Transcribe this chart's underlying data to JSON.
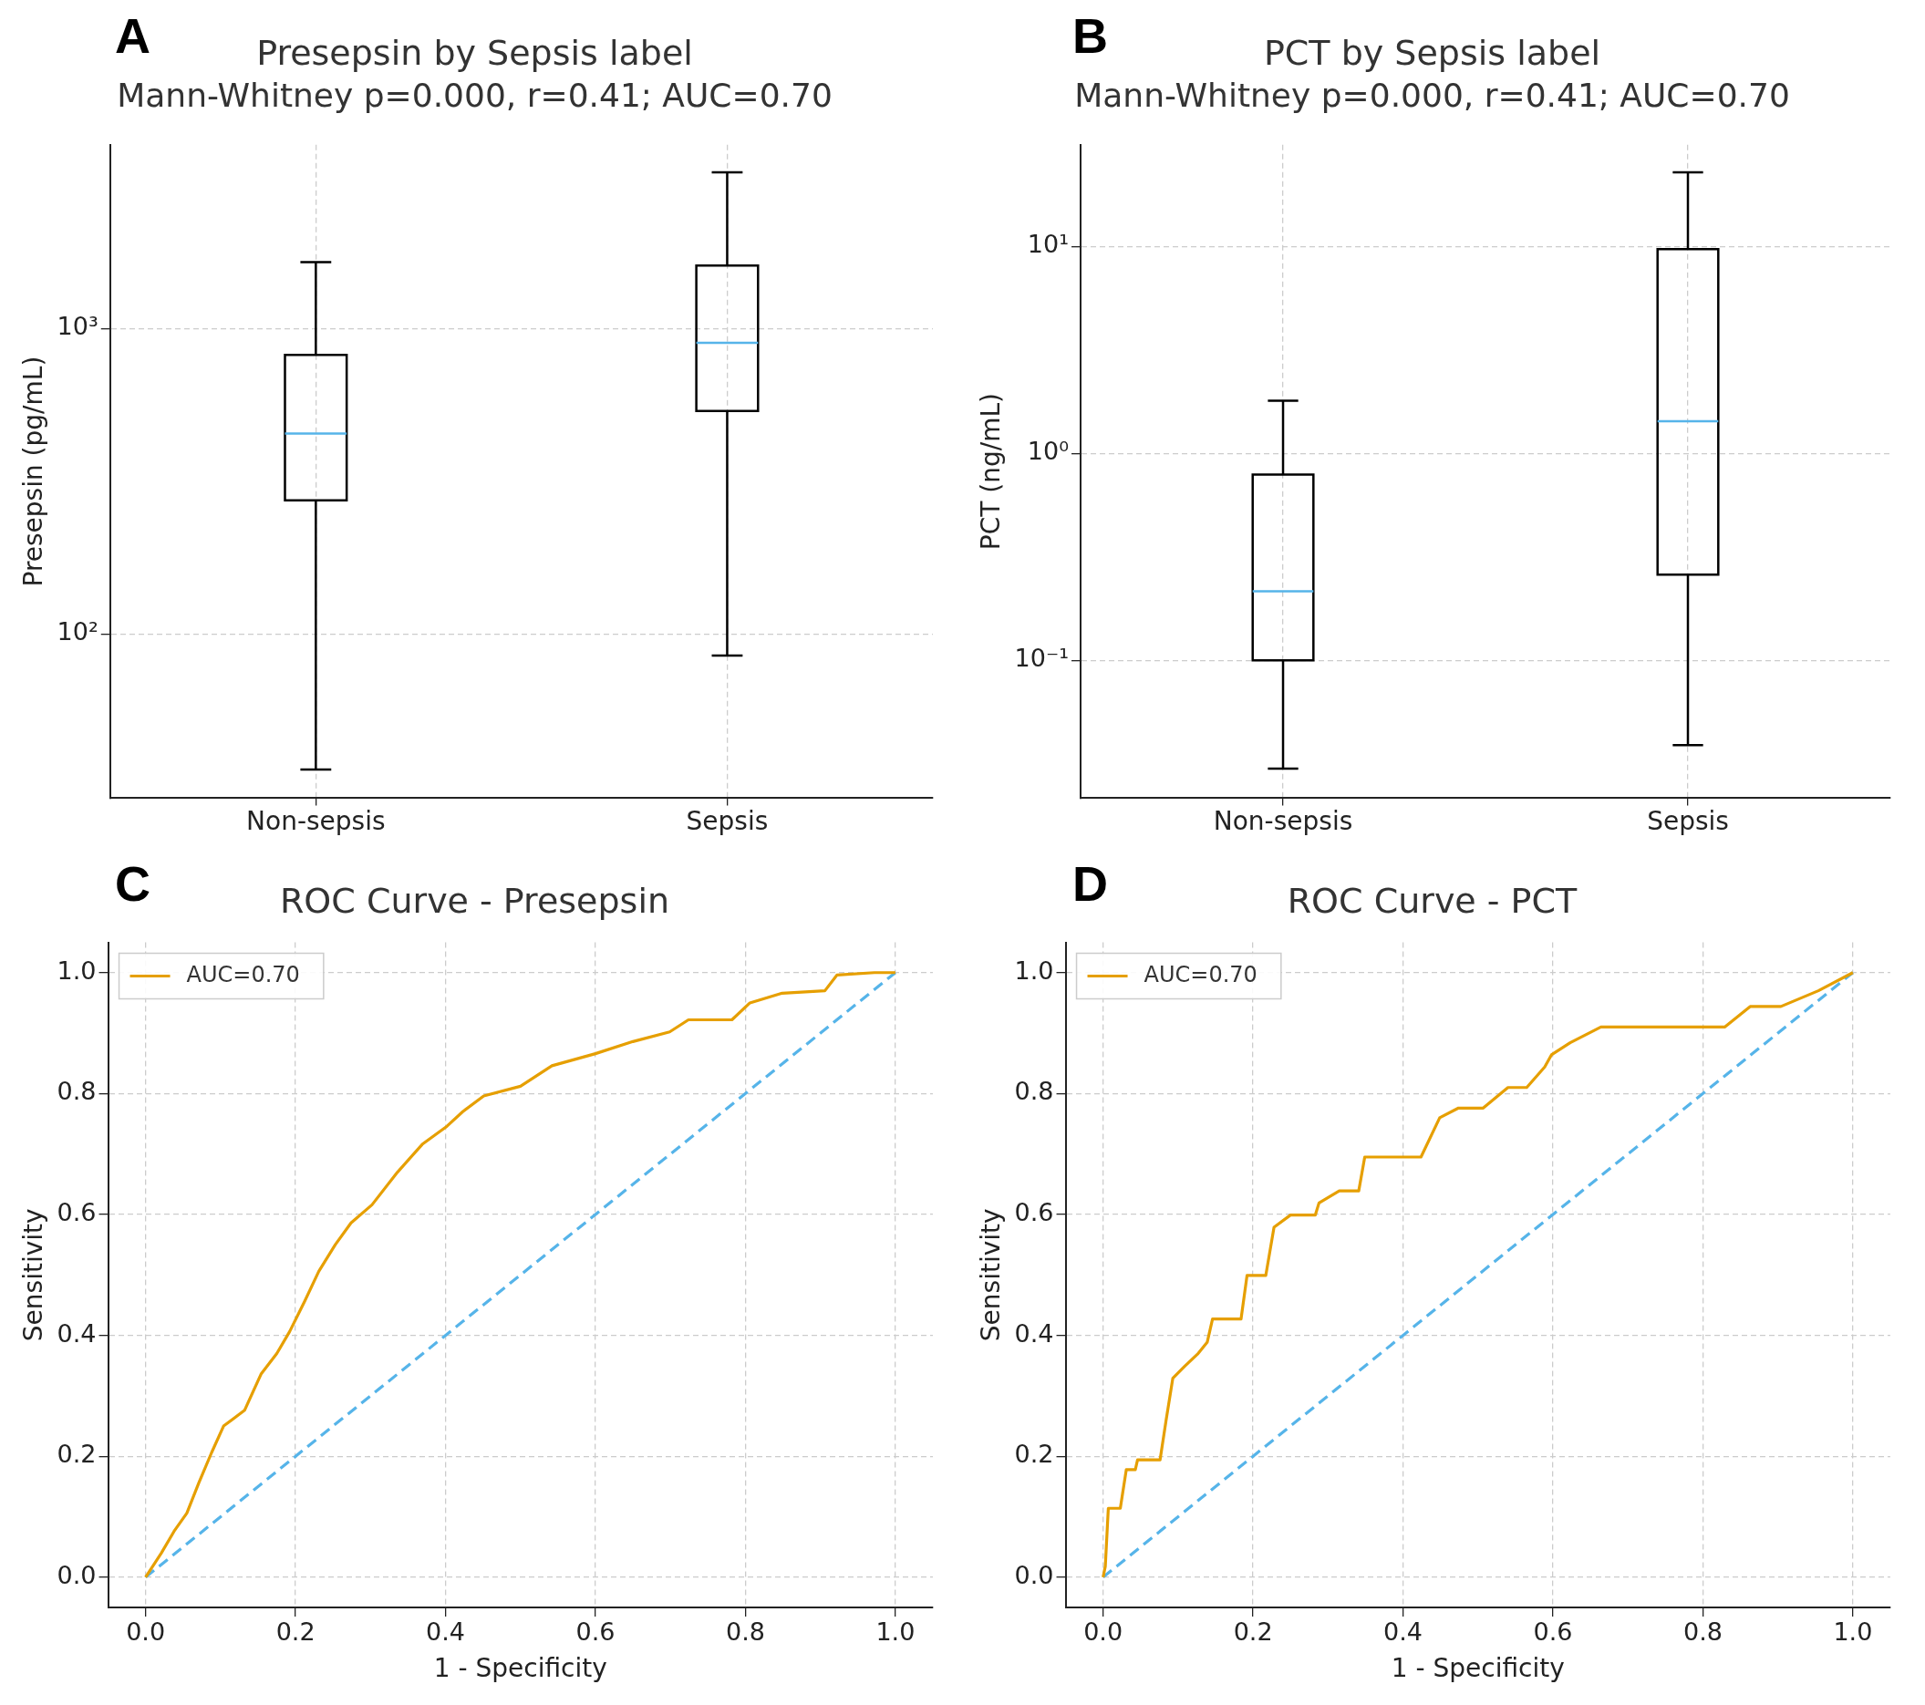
{
  "chart_data": [
    {
      "type": "box",
      "title": "Presepsin by Sepsis label",
      "subtitle": "Mann-Whitney p=0.000, r=0.41; AUC=0.70",
      "ylabel": "Presepsin (pg/mL)",
      "annotations": [
        "A"
      ],
      "categories": [
        "Non-sepsis",
        "Sepsis"
      ],
      "log": "y",
      "grid": true,
      "ylim": [
        29,
        4000
      ],
      "yticks": [
        {
          "value": 100,
          "label": "10²"
        },
        {
          "value": 1000,
          "label": "10³"
        }
      ],
      "series": [
        {
          "color": "#000000",
          "boxes": [
            {
              "low": 36,
              "q1": 274,
              "median": 453,
              "q3": 820,
              "high": 1650
            },
            {
              "low": 85,
              "q1": 537,
              "median": 898,
              "q3": 1610,
              "high": 3250
            }
          ]
        }
      ]
    },
    {
      "type": "box",
      "title": "PCT by Sepsis label",
      "subtitle": "Mann-Whitney p=0.000, r=0.41; AUC=0.70",
      "ylabel": "PCT (ng/mL)",
      "annotations": [
        "B"
      ],
      "categories": [
        "Non-sepsis",
        "Sepsis"
      ],
      "log": "y",
      "grid": true,
      "ylim": [
        0.0216,
        31
      ],
      "yticks": [
        {
          "value": 0.1,
          "label": "10⁻¹"
        },
        {
          "value": 1,
          "label": "10⁰"
        },
        {
          "value": 10,
          "label": "10¹"
        }
      ],
      "series": [
        {
          "color": "#000000",
          "boxes": [
            {
              "low": 0.03,
              "q1": 0.1,
              "median": 0.216,
              "q3": 0.79,
              "high": 1.8
            },
            {
              "low": 0.039,
              "q1": 0.26,
              "median": 1.43,
              "q3": 9.7,
              "high": 22.8
            }
          ]
        }
      ]
    },
    {
      "type": "line",
      "title": "ROC Curve - Presepsin",
      "xlabel": "1 - Specificity",
      "ylabel": "Sensitivity",
      "annotations": [
        "C"
      ],
      "grid": true,
      "legend": "top left",
      "xlim": [
        -0.05,
        1.05
      ],
      "ylim": [
        -0.05,
        1.05
      ],
      "xticks": [
        {
          "value": 0,
          "label": "0.0"
        },
        {
          "value": 0.2,
          "label": "0.2"
        },
        {
          "value": 0.4,
          "label": "0.4"
        },
        {
          "value": 0.6,
          "label": "0.6"
        },
        {
          "value": 0.8,
          "label": "0.8"
        },
        {
          "value": 1,
          "label": "1.0"
        }
      ],
      "yticks": [
        {
          "value": 0,
          "label": "0.0"
        },
        {
          "value": 0.2,
          "label": "0.2"
        },
        {
          "value": 0.4,
          "label": "0.4"
        },
        {
          "value": 0.6,
          "label": "0.6"
        },
        {
          "value": 0.8,
          "label": "0.8"
        },
        {
          "value": 1,
          "label": "1.0"
        }
      ],
      "series": [
        {
          "name": "AUC=0.70",
          "color": "#e69f00",
          "line_style": "solid",
          "x": [
            0,
            0.021,
            0.038,
            0.055,
            0.071,
            0.088,
            0.104,
            0.132,
            0.154,
            0.175,
            0.192,
            0.212,
            0.231,
            0.253,
            0.274,
            0.302,
            0.336,
            0.369,
            0.402,
            0.423,
            0.451,
            0.5,
            0.542,
            0.6,
            0.65,
            0.699,
            0.724,
            0.782,
            0.806,
            0.849,
            0.906,
            0.922,
            0.972,
            1
          ],
          "values": [
            0,
            0.04,
            0.076,
            0.106,
            0.156,
            0.206,
            0.25,
            0.276,
            0.336,
            0.37,
            0.406,
            0.456,
            0.506,
            0.55,
            0.586,
            0.616,
            0.67,
            0.716,
            0.746,
            0.77,
            0.796,
            0.812,
            0.846,
            0.866,
            0.886,
            0.902,
            0.922,
            0.922,
            0.95,
            0.966,
            0.97,
            0.996,
            1,
            1
          ]
        },
        {
          "color": "#56b4e9",
          "line_style": "dashed",
          "x": [
            0,
            1
          ],
          "values": [
            0,
            1
          ]
        }
      ]
    },
    {
      "type": "line",
      "title": "ROC Curve - PCT",
      "xlabel": "1 - Specificity",
      "ylabel": "Sensitivity",
      "annotations": [
        "D"
      ],
      "grid": true,
      "legend": "top left",
      "xlim": [
        -0.05,
        1.05
      ],
      "ylim": [
        -0.05,
        1.05
      ],
      "xticks": [
        {
          "value": 0,
          "label": "0.0"
        },
        {
          "value": 0.2,
          "label": "0.2"
        },
        {
          "value": 0.4,
          "label": "0.4"
        },
        {
          "value": 0.6,
          "label": "0.6"
        },
        {
          "value": 0.8,
          "label": "0.8"
        },
        {
          "value": 1,
          "label": "1.0"
        }
      ],
      "yticks": [
        {
          "value": 0,
          "label": "0.0"
        },
        {
          "value": 0.2,
          "label": "0.2"
        },
        {
          "value": 0.4,
          "label": "0.4"
        },
        {
          "value": 0.6,
          "label": "0.6"
        },
        {
          "value": 0.8,
          "label": "0.8"
        },
        {
          "value": 1,
          "label": "1.0"
        }
      ],
      "series": [
        {
          "name": "AUC=0.70",
          "color": "#e69f00",
          "line_style": "solid",
          "x": [
            0,
            0.003,
            0.007,
            0.023,
            0.026,
            0.031,
            0.043,
            0.046,
            0.076,
            0.084,
            0.093,
            0.109,
            0.126,
            0.139,
            0.146,
            0.184,
            0.192,
            0.217,
            0.228,
            0.25,
            0.283,
            0.288,
            0.315,
            0.341,
            0.349,
            0.424,
            0.449,
            0.474,
            0.507,
            0.54,
            0.565,
            0.589,
            0.598,
            0.623,
            0.664,
            0.829,
            0.863,
            0.904,
            0.954,
            1
          ],
          "values": [
            0,
            0.018,
            0.114,
            0.114,
            0.138,
            0.178,
            0.178,
            0.194,
            0.194,
            0.259,
            0.329,
            0.349,
            0.369,
            0.389,
            0.427,
            0.427,
            0.499,
            0.499,
            0.579,
            0.599,
            0.599,
            0.619,
            0.639,
            0.639,
            0.695,
            0.695,
            0.76,
            0.776,
            0.776,
            0.81,
            0.81,
            0.844,
            0.864,
            0.884,
            0.91,
            0.91,
            0.944,
            0.944,
            0.97,
            1
          ]
        },
        {
          "color": "#56b4e9",
          "line_style": "dashed",
          "x": [
            0,
            1
          ],
          "values": [
            0,
            1
          ]
        }
      ]
    }
  ]
}
